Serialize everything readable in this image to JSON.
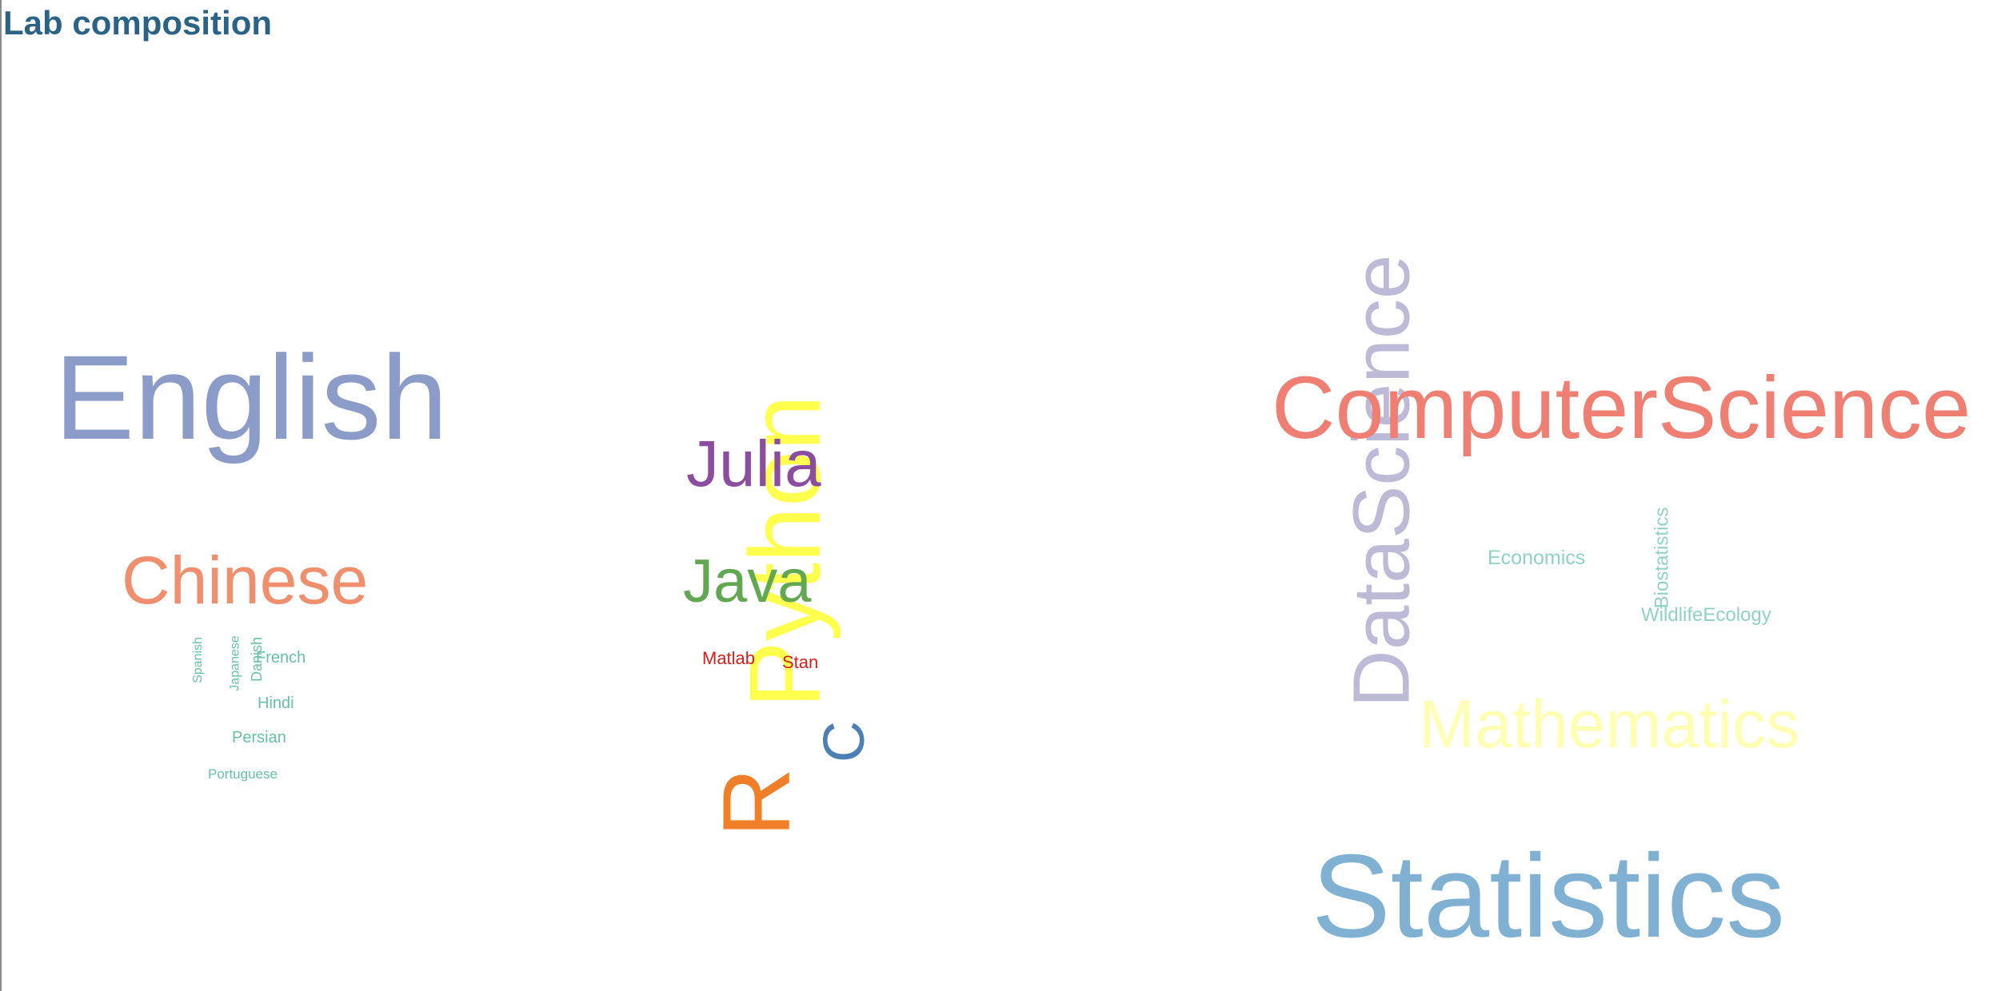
{
  "title": "Lab composition",
  "words": {
    "english": {
      "text": "English",
      "color": "#8b9cc8",
      "orientation": "horizontal"
    },
    "chinese": {
      "text": "Chinese",
      "color": "#ef8f6d",
      "orientation": "horizontal"
    },
    "spanish": {
      "text": "Spanish",
      "color": "#66c2a5",
      "orientation": "vertical"
    },
    "japanese": {
      "text": "Japanese",
      "color": "#66c2a5",
      "orientation": "vertical"
    },
    "danish": {
      "text": "Danish",
      "color": "#66c2a5",
      "orientation": "vertical"
    },
    "french": {
      "text": "French",
      "color": "#66c2a5",
      "orientation": "horizontal"
    },
    "hindi": {
      "text": "Hindi",
      "color": "#66c2a5",
      "orientation": "horizontal"
    },
    "persian": {
      "text": "Persian",
      "color": "#66c2a5",
      "orientation": "horizontal"
    },
    "portuguese": {
      "text": "Portuguese",
      "color": "#66c2a5",
      "orientation": "horizontal"
    },
    "python": {
      "text": "Python",
      "color": "#ffff4d",
      "orientation": "vertical"
    },
    "julia": {
      "text": "Julia",
      "color": "#8c4da0",
      "orientation": "horizontal"
    },
    "java": {
      "text": "Java",
      "color": "#62a752",
      "orientation": "horizontal"
    },
    "matlab": {
      "text": "Matlab",
      "color": "#d4201e",
      "orientation": "horizontal"
    },
    "stan": {
      "text": "Stan",
      "color": "#d4201e",
      "orientation": "horizontal"
    },
    "r": {
      "text": "R",
      "color": "#f07f27",
      "orientation": "vertical"
    },
    "c": {
      "text": "C",
      "color": "#4c7fb5",
      "orientation": "vertical"
    },
    "datascience": {
      "text": "DataScience",
      "color": "#bdbad8",
      "orientation": "vertical"
    },
    "computerscience": {
      "text": "ComputerScience",
      "color": "#f07f73",
      "orientation": "horizontal"
    },
    "economics": {
      "text": "Economics",
      "color": "#8ed2c6",
      "orientation": "horizontal"
    },
    "biostatistics": {
      "text": "Biostatistics",
      "color": "#8ed2c6",
      "orientation": "vertical"
    },
    "wildlifeecology": {
      "text": "WildlifeEcology",
      "color": "#8ed2c6",
      "orientation": "horizontal"
    },
    "mathematics": {
      "text": "Mathematics",
      "color": "#ffffb3",
      "orientation": "horizontal"
    },
    "statistics": {
      "text": "Statistics",
      "color": "#80b1d3",
      "orientation": "horizontal"
    }
  }
}
